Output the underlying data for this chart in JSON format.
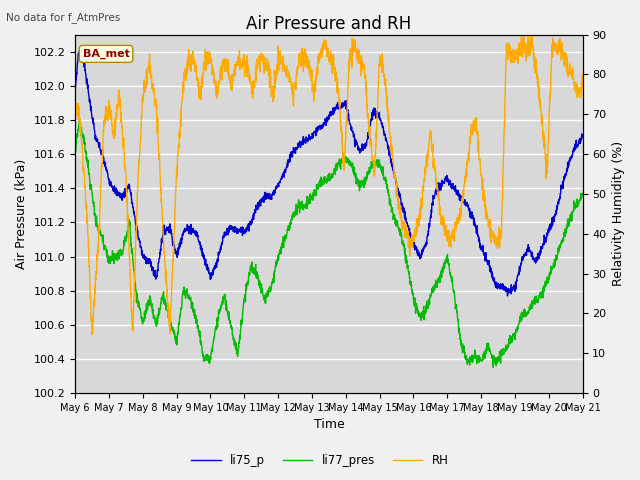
{
  "title": "Air Pressure and RH",
  "subtitle": "No data for f_AtmPres",
  "xlabel": "Time",
  "ylabel_left": "Air Pressure (kPa)",
  "ylabel_right": "Relativity Humidity (%)",
  "ylim_left": [
    100.2,
    102.3
  ],
  "ylim_right": [
    0,
    90
  ],
  "yticks_left": [
    100.2,
    100.4,
    100.6,
    100.8,
    101.0,
    101.2,
    101.4,
    101.6,
    101.8,
    102.0,
    102.2
  ],
  "yticks_right": [
    0,
    10,
    20,
    30,
    40,
    50,
    60,
    70,
    80,
    90
  ],
  "xtick_labels": [
    "May 6",
    "May 7",
    "May 8",
    "May 9",
    "May 10",
    "May 11",
    "May 12",
    "May 13",
    "May 14",
    "May 15",
    "May 16",
    "May 17",
    "May 18",
    "May 19",
    "May 20",
    "May 21"
  ],
  "color_li75": "#0000cc",
  "color_li77": "#00bb00",
  "color_rh": "#ffaa00",
  "legend_labels": [
    "li75_p",
    "li77_pres",
    "RH"
  ],
  "annotation_text": "BA_met",
  "bg_color": "#d8d8d8",
  "title_fontsize": 12,
  "label_fontsize": 9,
  "tick_fontsize": 8,
  "li75_t": [
    0,
    0.1,
    0.25,
    0.4,
    0.6,
    0.8,
    1.0,
    1.2,
    1.4,
    1.6,
    1.8,
    2.0,
    2.2,
    2.4,
    2.6,
    2.8,
    3.0,
    3.2,
    3.4,
    3.6,
    3.8,
    4.0,
    4.2,
    4.4,
    4.6,
    4.8,
    5.0,
    5.2,
    5.4,
    5.6,
    5.8,
    6.0,
    6.2,
    6.4,
    6.6,
    6.8,
    7.0,
    7.2,
    7.4,
    7.6,
    7.8,
    8.0,
    8.2,
    8.4,
    8.6,
    8.8,
    9.0,
    9.2,
    9.4,
    9.6,
    9.8,
    10.0,
    10.2,
    10.4,
    10.6,
    10.8,
    11.0,
    11.2,
    11.4,
    11.6,
    11.8,
    12.0,
    12.2,
    12.4,
    12.6,
    12.8,
    13.0,
    13.2,
    13.4,
    13.6,
    13.8,
    14.0,
    14.2,
    14.4,
    14.6,
    14.8,
    15.0
  ],
  "li75_v": [
    101.97,
    102.2,
    102.15,
    101.95,
    101.7,
    101.6,
    101.45,
    101.38,
    101.35,
    101.42,
    101.18,
    101.0,
    100.97,
    100.87,
    101.15,
    101.17,
    101.0,
    101.15,
    101.17,
    101.13,
    101.0,
    100.88,
    100.97,
    101.12,
    101.17,
    101.15,
    101.15,
    101.2,
    101.3,
    101.35,
    101.35,
    101.42,
    101.5,
    101.6,
    101.65,
    101.68,
    101.7,
    101.75,
    101.78,
    101.85,
    101.88,
    101.9,
    101.72,
    101.62,
    101.65,
    101.85,
    101.82,
    101.68,
    101.5,
    101.35,
    101.2,
    101.07,
    101.0,
    101.1,
    101.35,
    101.42,
    101.45,
    101.4,
    101.35,
    101.3,
    101.2,
    101.05,
    100.97,
    100.85,
    100.82,
    100.8,
    100.82,
    100.98,
    101.05,
    100.97,
    101.05,
    101.15,
    101.25,
    101.42,
    101.55,
    101.65,
    101.7
  ],
  "li77_t": [
    0,
    0.1,
    0.25,
    0.4,
    0.6,
    0.8,
    1.0,
    1.2,
    1.4,
    1.6,
    1.8,
    2.0,
    2.2,
    2.4,
    2.6,
    2.8,
    3.0,
    3.2,
    3.4,
    3.6,
    3.8,
    4.0,
    4.2,
    4.4,
    4.6,
    4.8,
    5.0,
    5.2,
    5.4,
    5.6,
    5.8,
    6.0,
    6.2,
    6.4,
    6.6,
    6.8,
    7.0,
    7.2,
    7.4,
    7.6,
    7.8,
    8.0,
    8.2,
    8.4,
    8.6,
    8.8,
    9.0,
    9.2,
    9.4,
    9.6,
    9.8,
    10.0,
    10.2,
    10.4,
    10.6,
    10.8,
    11.0,
    11.2,
    11.4,
    11.6,
    11.8,
    12.0,
    12.2,
    12.4,
    12.6,
    12.8,
    13.0,
    13.2,
    13.4,
    13.6,
    13.8,
    14.0,
    14.2,
    14.4,
    14.6,
    14.8,
    15.0
  ],
  "li77_v": [
    101.6,
    101.78,
    101.7,
    101.5,
    101.22,
    101.1,
    100.98,
    101.0,
    101.03,
    101.2,
    100.78,
    100.62,
    100.75,
    100.6,
    100.78,
    100.62,
    100.5,
    100.8,
    100.75,
    100.62,
    100.4,
    100.4,
    100.62,
    100.77,
    100.6,
    100.42,
    100.75,
    100.95,
    100.88,
    100.75,
    100.82,
    101.0,
    101.1,
    101.22,
    101.3,
    101.3,
    101.35,
    101.42,
    101.45,
    101.47,
    101.55,
    101.58,
    101.52,
    101.42,
    101.45,
    101.55,
    101.55,
    101.42,
    101.25,
    101.15,
    100.97,
    100.75,
    100.65,
    100.7,
    100.82,
    100.88,
    101.0,
    100.78,
    100.5,
    100.38,
    100.42,
    100.38,
    100.48,
    100.38,
    100.42,
    100.48,
    100.55,
    100.65,
    100.68,
    100.75,
    100.78,
    100.88,
    100.98,
    101.1,
    101.2,
    101.3,
    101.35
  ],
  "rh_t": [
    0,
    0.15,
    0.35,
    0.5,
    0.7,
    0.85,
    1.0,
    1.15,
    1.3,
    1.5,
    1.7,
    1.85,
    2.0,
    2.2,
    2.4,
    2.6,
    2.8,
    3.0,
    3.2,
    3.4,
    3.5,
    3.7,
    3.85,
    4.0,
    4.2,
    4.35,
    4.5,
    4.6,
    4.8,
    4.95,
    5.1,
    5.25,
    5.4,
    5.55,
    5.7,
    5.85,
    6.0,
    6.15,
    6.3,
    6.45,
    6.6,
    6.75,
    6.9,
    7.05,
    7.2,
    7.35,
    7.5,
    7.65,
    7.8,
    7.95,
    8.1,
    8.25,
    8.4,
    8.55,
    8.7,
    8.85,
    9.0,
    9.15,
    9.3,
    9.45,
    9.6,
    9.75,
    9.9,
    10.05,
    10.2,
    10.35,
    10.5,
    10.65,
    10.8,
    10.95,
    11.1,
    11.25,
    11.4,
    11.55,
    11.7,
    11.85,
    12.0,
    12.15,
    12.3,
    12.45,
    12.6,
    12.75,
    12.9,
    13.05,
    13.2,
    13.35,
    13.5,
    13.65,
    13.8,
    13.95,
    14.1,
    14.25,
    14.4,
    14.55,
    14.7,
    14.85,
    15.0
  ],
  "rh_v": [
    72,
    68,
    45,
    15,
    40,
    68,
    73,
    65,
    75,
    55,
    15,
    52,
    75,
    82,
    72,
    40,
    15,
    55,
    78,
    84,
    84,
    75,
    84,
    84,
    75,
    83,
    83,
    78,
    83,
    83,
    82,
    75,
    83,
    84,
    82,
    75,
    84,
    83,
    80,
    75,
    83,
    84,
    83,
    75,
    84,
    88,
    84,
    82,
    75,
    55,
    83,
    88,
    84,
    82,
    65,
    55,
    84,
    80,
    65,
    55,
    45,
    40,
    38,
    40,
    45,
    55,
    65,
    55,
    45,
    40,
    38,
    42,
    45,
    55,
    65,
    68,
    55,
    45,
    40,
    38,
    40,
    88,
    84,
    85,
    88,
    85,
    88,
    80,
    68,
    55,
    88,
    87,
    85,
    82,
    80,
    75,
    78
  ]
}
